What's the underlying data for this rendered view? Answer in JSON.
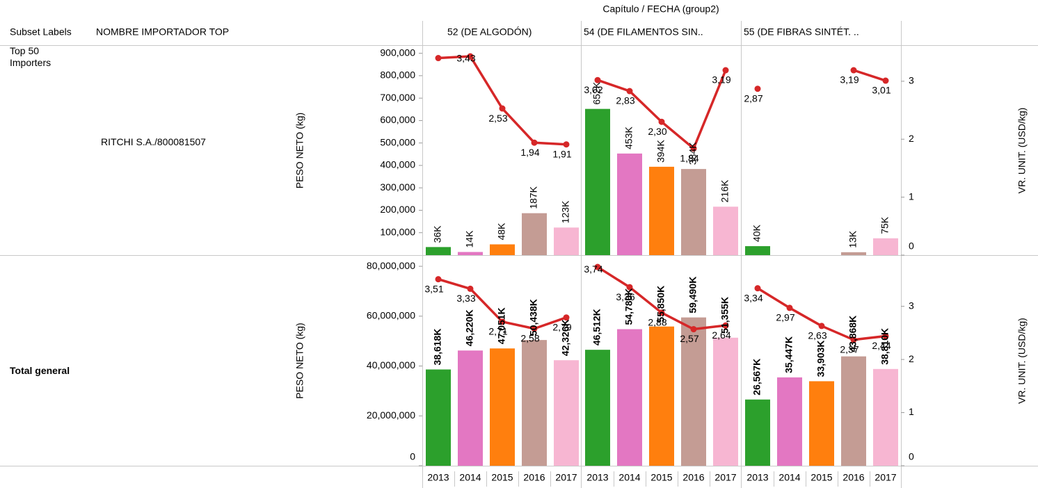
{
  "chart_data": {
    "type": "bar-line",
    "top_title": "Capítulo  /  FECHA (group2)",
    "header_subset": "Subset Labels",
    "header_importer": "NOMBRE IMPORTADOR TOP",
    "panels": [
      "52 (DE ALGODÓN)",
      "54 (DE FILAMENTOS SIN..",
      "55 (DE FIBRAS SINTÉT. .."
    ],
    "categories": [
      "2013",
      "2014",
      "2015",
      "2016",
      "2017"
    ],
    "colors": [
      "#2ca02c",
      "#e377c2",
      "#ff7f0e",
      "#c49c94",
      "#f7b6d2"
    ],
    "line_color": "#d62728",
    "rows": [
      {
        "subset": "Top 50 Importers",
        "importer": "RITCHI S.A./800081507",
        "ylabel": "PESO NETO (kg)",
        "y2label": "VR. UNIT. (USD/kg)",
        "bold_labels": false,
        "ylim": [
          0,
          933000
        ],
        "yticks": [
          {
            "value": 100000,
            "label": "100,000"
          },
          {
            "value": 200000,
            "label": "200,000"
          },
          {
            "value": 300000,
            "label": "300,000"
          },
          {
            "value": 400000,
            "label": "400,000"
          },
          {
            "value": 500000,
            "label": "500,000"
          },
          {
            "value": 600000,
            "label": "600,000"
          },
          {
            "value": 700000,
            "label": "700,000"
          },
          {
            "value": 800000,
            "label": "800,000"
          },
          {
            "value": 900000,
            "label": "900,000"
          }
        ],
        "y2lim": [
          0,
          3.61
        ],
        "y2ticks": [
          0,
          1,
          2,
          3
        ],
        "cells": [
          {
            "values": [
              36000,
              14000,
              48000,
              187000,
              123000
            ],
            "value_labels": [
              "36K",
              "14K",
              "48K",
              "187K",
              "123K"
            ],
            "line_values": [
              3.4,
              3.43,
              2.53,
              1.94,
              1.91
            ],
            "line_labels": [
              null,
              "3,43",
              "2,53",
              "1,94",
              "1,91"
            ]
          },
          {
            "values": [
              652000,
              453000,
              394000,
              384000,
              216000
            ],
            "value_labels": [
              "652K",
              "453K",
              "394K",
              "384K",
              "216K"
            ],
            "line_values": [
              3.02,
              2.83,
              2.3,
              1.84,
              3.19
            ],
            "line_labels": [
              "3,02",
              "2,83",
              "2,30",
              "1,84",
              "3,19"
            ]
          },
          {
            "values": [
              40000,
              null,
              null,
              13000,
              75000
            ],
            "value_labels": [
              "40K",
              null,
              null,
              "13K",
              "75K"
            ],
            "line_values": [
              2.87,
              null,
              null,
              3.19,
              3.01
            ],
            "line_labels": [
              "2,87",
              null,
              null,
              "3,19",
              "3,01"
            ]
          }
        ]
      },
      {
        "subset": "Total general",
        "ylabel": "PESO NETO (kg)",
        "y2label": "VR. UNIT. (USD/kg)",
        "bold_labels": true,
        "ylim": [
          0,
          84200000
        ],
        "yticks": [
          0,
          {
            "value": 20000000,
            "label": "20,000,000"
          },
          {
            "value": 40000000,
            "label": "40,000,000"
          },
          {
            "value": 60000000,
            "label": "60,000,000"
          },
          {
            "value": 80000000,
            "label": "80,000,000"
          }
        ],
        "y2lim": [
          0,
          3.95
        ],
        "y2ticks": [
          0,
          1,
          2,
          3
        ],
        "cells": [
          {
            "values": [
              38618000,
              46220000,
              47051000,
              50438000,
              42326000
            ],
            "value_labels": [
              "38,618K",
              "46,220K",
              "47,051K",
              "50,438K",
              "42,326K"
            ],
            "line_values": [
              3.51,
              3.33,
              2.71,
              2.58,
              2.79
            ],
            "line_labels": [
              "3,51",
              "3,33",
              "2,71",
              "2,58",
              "2,79"
            ]
          },
          {
            "values": [
              46512000,
              54780000,
              55850000,
              59490000,
              51355000
            ],
            "value_labels": [
              "46,512K",
              "54,780K",
              "55,850K",
              "59,490K",
              "51,355K"
            ],
            "line_values": [
              3.74,
              3.36,
              2.88,
              2.57,
              2.64
            ],
            "line_labels": [
              "3,74",
              "3,36",
              "2,88",
              "2,57",
              "2,64"
            ]
          },
          {
            "values": [
              26567000,
              35447000,
              33903000,
              43868000,
              38810000
            ],
            "value_labels": [
              "26,567K",
              "35,447K",
              "33,903K",
              "43,868K",
              "38,810K"
            ],
            "line_values": [
              3.34,
              2.97,
              2.63,
              2.37,
              2.44
            ],
            "line_labels": [
              "3,34",
              "2,97",
              "2,63",
              "2,37",
              "2,44"
            ]
          }
        ]
      }
    ]
  }
}
